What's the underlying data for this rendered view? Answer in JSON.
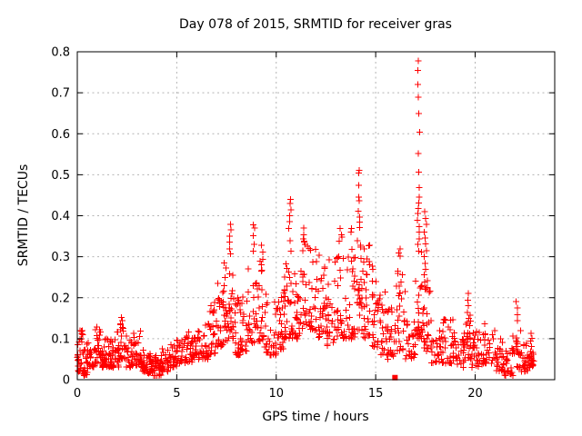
{
  "figure": {
    "title": "Day 078 of 2015, SRMTID for receiver gras",
    "background_color": "#ffffff",
    "border_color": "#000000",
    "grid_color": "#b4b4b4",
    "marker_color": "#ff0000"
  },
  "chart_data": {
    "type": "scatter",
    "title": "Day 078 of 2015, SRMTID for receiver gras",
    "xlabel": "GPS time / hours",
    "ylabel": "SRMTID / TECUs",
    "xlim": [
      0,
      24
    ],
    "ylim": [
      0,
      0.8
    ],
    "xticks": [
      0,
      5,
      10,
      15,
      20
    ],
    "xtick_labels": [
      "0",
      "5",
      "10",
      "15",
      "20"
    ],
    "yticks": [
      0,
      0.1,
      0.2,
      0.3,
      0.4,
      0.5,
      0.6,
      0.7,
      0.8
    ],
    "ytick_labels": [
      "0",
      "0.1",
      "0.2",
      "0.3",
      "0.4",
      "0.5",
      "0.6",
      "0.7",
      "0.8"
    ],
    "grid": true,
    "legend": "none",
    "marker": "+",
    "marker_color": "#ff0000",
    "bin_format": [
      "t_start_hours",
      "t_end_hours",
      "value_min",
      "value_max",
      "approx_point_count"
    ],
    "bins": [
      [
        0.0,
        0.3,
        0.02,
        0.12,
        30
      ],
      [
        0.3,
        0.6,
        0.01,
        0.09,
        24
      ],
      [
        0.6,
        0.9,
        0.03,
        0.1,
        24
      ],
      [
        0.9,
        1.2,
        0.04,
        0.135,
        26
      ],
      [
        1.2,
        1.5,
        0.03,
        0.1,
        24
      ],
      [
        1.5,
        1.8,
        0.03,
        0.1,
        24
      ],
      [
        1.8,
        2.1,
        0.03,
        0.12,
        24
      ],
      [
        2.1,
        2.45,
        0.05,
        0.155,
        26
      ],
      [
        2.45,
        2.8,
        0.03,
        0.11,
        24
      ],
      [
        2.8,
        3.2,
        0.03,
        0.12,
        26
      ],
      [
        3.2,
        3.5,
        0.02,
        0.08,
        22
      ],
      [
        3.5,
        3.8,
        0.015,
        0.07,
        24
      ],
      [
        3.8,
        4.2,
        0.01,
        0.06,
        28
      ],
      [
        4.2,
        4.6,
        0.02,
        0.075,
        24
      ],
      [
        4.6,
        5.0,
        0.03,
        0.09,
        24
      ],
      [
        5.0,
        5.4,
        0.04,
        0.1,
        24
      ],
      [
        5.4,
        5.8,
        0.04,
        0.12,
        24
      ],
      [
        5.8,
        6.2,
        0.05,
        0.135,
        24
      ],
      [
        6.2,
        6.6,
        0.05,
        0.14,
        24
      ],
      [
        6.6,
        7.0,
        0.06,
        0.19,
        26
      ],
      [
        7.0,
        7.35,
        0.08,
        0.24,
        24
      ],
      [
        7.35,
        7.6,
        0.09,
        0.3,
        20
      ],
      [
        7.6,
        7.85,
        0.1,
        0.3,
        22
      ],
      [
        7.85,
        8.2,
        0.06,
        0.2,
        24
      ],
      [
        8.2,
        8.6,
        0.07,
        0.25,
        24
      ],
      [
        8.6,
        9.1,
        0.09,
        0.3,
        28
      ],
      [
        9.1,
        9.5,
        0.08,
        0.29,
        26
      ],
      [
        9.5,
        10.0,
        0.06,
        0.2,
        28
      ],
      [
        10.0,
        10.4,
        0.07,
        0.22,
        26
      ],
      [
        10.4,
        10.8,
        0.1,
        0.3,
        28
      ],
      [
        10.8,
        11.2,
        0.1,
        0.28,
        26
      ],
      [
        11.2,
        11.6,
        0.12,
        0.35,
        26
      ],
      [
        11.6,
        12.0,
        0.12,
        0.33,
        26
      ],
      [
        12.0,
        12.5,
        0.1,
        0.31,
        30
      ],
      [
        12.5,
        13.0,
        0.08,
        0.3,
        30
      ],
      [
        13.0,
        13.5,
        0.1,
        0.36,
        30
      ],
      [
        13.5,
        14.0,
        0.1,
        0.36,
        30
      ],
      [
        14.0,
        14.35,
        0.12,
        0.38,
        26
      ],
      [
        14.35,
        14.8,
        0.1,
        0.33,
        26
      ],
      [
        14.8,
        15.1,
        0.08,
        0.3,
        22
      ],
      [
        15.1,
        15.6,
        0.06,
        0.22,
        28
      ],
      [
        15.6,
        16.0,
        0.05,
        0.18,
        24
      ],
      [
        16.0,
        16.5,
        0.07,
        0.27,
        28
      ],
      [
        16.5,
        17.0,
        0.05,
        0.15,
        26
      ],
      [
        17.0,
        17.35,
        0.1,
        0.33,
        28
      ],
      [
        17.35,
        17.8,
        0.07,
        0.25,
        28
      ],
      [
        17.8,
        18.4,
        0.04,
        0.12,
        30
      ],
      [
        18.4,
        19.0,
        0.04,
        0.15,
        30
      ],
      [
        19.0,
        19.5,
        0.03,
        0.12,
        26
      ],
      [
        19.5,
        19.8,
        0.05,
        0.16,
        20
      ],
      [
        19.8,
        20.4,
        0.03,
        0.12,
        30
      ],
      [
        20.4,
        21.0,
        0.04,
        0.14,
        30
      ],
      [
        21.0,
        21.4,
        0.02,
        0.1,
        24
      ],
      [
        21.4,
        21.9,
        0.01,
        0.08,
        28
      ],
      [
        21.9,
        22.3,
        0.03,
        0.13,
        24
      ],
      [
        22.3,
        22.7,
        0.02,
        0.1,
        26
      ],
      [
        22.7,
        23.0,
        0.03,
        0.13,
        22
      ]
    ],
    "spike_columns": [
      {
        "t": 7.72,
        "values": [
          0.38,
          0.365,
          0.35,
          0.335,
          0.32,
          0.305
        ]
      },
      {
        "t": 8.88,
        "values": [
          0.38,
          0.37,
          0.35,
          0.33,
          0.315
        ]
      },
      {
        "t": 9.28,
        "values": [
          0.33,
          0.31,
          0.295
        ]
      },
      {
        "t": 10.68,
        "values": [
          0.44,
          0.43,
          0.415,
          0.4,
          0.385,
          0.37,
          0.34,
          0.315
        ]
      },
      {
        "t": 11.35,
        "values": [
          0.37,
          0.355,
          0.34
        ]
      },
      {
        "t": 13.25,
        "values": [
          0.37,
          0.355
        ]
      },
      {
        "t": 13.75,
        "values": [
          0.37,
          0.36
        ]
      },
      {
        "t": 14.15,
        "values": [
          0.51,
          0.505,
          0.475,
          0.445,
          0.435,
          0.41,
          0.395,
          0.385
        ]
      },
      {
        "t": 16.2,
        "values": [
          0.32,
          0.31,
          0.3
        ]
      },
      {
        "t": 17.15,
        "values": [
          0.78,
          0.755,
          0.72,
          0.69,
          0.65,
          0.605,
          0.55,
          0.505,
          0.47,
          0.445,
          0.43,
          0.42,
          0.405,
          0.39,
          0.375,
          0.36,
          0.345,
          0.33
        ]
      },
      {
        "t": 17.5,
        "values": [
          0.41,
          0.395,
          0.38,
          0.36,
          0.345,
          0.33,
          0.315,
          0.3,
          0.285,
          0.27,
          0.255,
          0.24
        ]
      },
      {
        "t": 19.65,
        "values": [
          0.21,
          0.195,
          0.18,
          0.165,
          0.15
        ]
      },
      {
        "t": 22.1,
        "values": [
          0.19,
          0.175,
          0.16,
          0.145
        ]
      }
    ],
    "outlier": {
      "t": 15.97,
      "value": 0.005,
      "marker": "filled-square"
    }
  }
}
